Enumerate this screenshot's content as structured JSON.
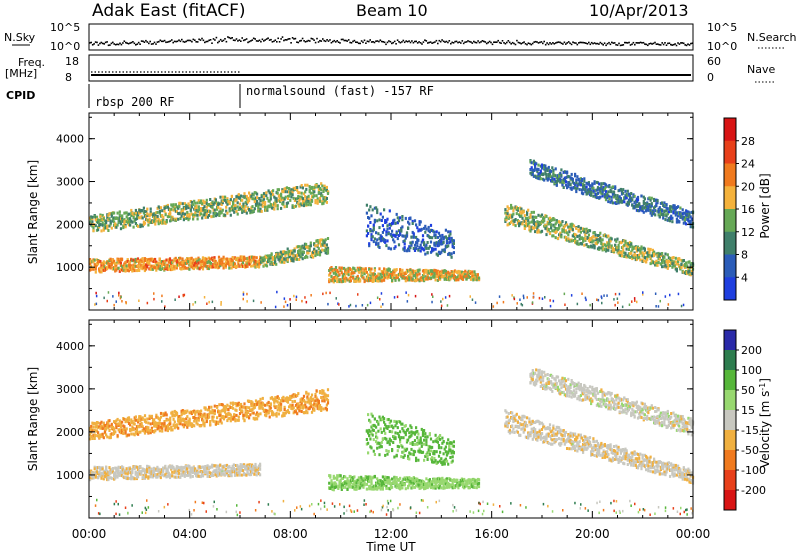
{
  "header": {
    "station": "Adak East (fitACF)",
    "beam": "Beam 10",
    "date": "10/Apr/2013"
  },
  "top_panels": {
    "nsky_label": "N.Sky",
    "nsky_ticks": [
      "10^5",
      "10^0"
    ],
    "nsearch_label": "N.Search",
    "nsearch_ticks": [
      "10^5",
      "10^0"
    ],
    "freq_label_1": "Freq.",
    "freq_label_2": "[MHz]",
    "freq_ticks": [
      "18",
      "8"
    ],
    "nave_label": "Nave",
    "nave_ticks": [
      "60",
      "0"
    ],
    "cpid_label": "CPID",
    "cpid_segments": [
      {
        "label": "rbsp 200 RF",
        "start_hour": 0
      },
      {
        "label": "normalsound (fast) -157 RF",
        "start_hour": 6
      }
    ]
  },
  "time_axis": {
    "label": "Time UT",
    "ticks": [
      "00:00",
      "04:00",
      "08:00",
      "12:00",
      "16:00",
      "20:00",
      "00:00"
    ]
  },
  "chart_data": [
    {
      "type": "heatmap",
      "name": "power",
      "ylabel": "Slant Range [km]",
      "yticks": [
        "1000",
        "2000",
        "3000",
        "4000"
      ],
      "ylim": [
        0,
        4600
      ],
      "xlim_hours": [
        0,
        24
      ],
      "colorbar_label": "Power [dB]",
      "colorbar_ticks": [
        "4",
        "8",
        "12",
        "16",
        "20",
        "24",
        "28"
      ],
      "colorbar_range": [
        0,
        32
      ],
      "colors": [
        "#1f3fdf",
        "#2b5cb8",
        "#3f7f6a",
        "#66a856",
        "#f4b23c",
        "#f07a1e",
        "#e8401a",
        "#d81414"
      ],
      "bands": [
        {
          "t0": 0.0,
          "t1": 6.8,
          "r0": 880,
          "r1": 1180,
          "r1_end": 1250,
          "r0_end": 1000,
          "level": 20
        },
        {
          "t0": 6.8,
          "t1": 9.5,
          "r0": 1000,
          "r1": 1250,
          "r1_end": 1700,
          "r0_end": 1300,
          "level": 14
        },
        {
          "t0": 0.0,
          "t1": 9.5,
          "r0": 1800,
          "r1": 2200,
          "r1_end": 3000,
          "r0_end": 2500,
          "level": 14
        },
        {
          "t0": 9.5,
          "t1": 15.5,
          "r0": 650,
          "r1": 1000,
          "r1_end": 900,
          "r0_end": 700,
          "level": 18
        },
        {
          "t0": 11.0,
          "t1": 14.5,
          "r0": 1500,
          "r1": 2500,
          "r1_end": 1800,
          "r0_end": 1200,
          "level": 6
        },
        {
          "t0": 16.5,
          "t1": 24.0,
          "r0": 2000,
          "r1": 2500,
          "r1_end": 1100,
          "r0_end": 800,
          "level": 14
        },
        {
          "t0": 17.5,
          "t1": 24.0,
          "r0": 3100,
          "r1": 3500,
          "r1_end": 2300,
          "r0_end": 1900,
          "level": 8
        }
      ]
    },
    {
      "type": "heatmap",
      "name": "velocity",
      "ylabel": "Slant Range [km]",
      "yticks": [
        "1000",
        "2000",
        "3000",
        "4000"
      ],
      "ylim": [
        0,
        4600
      ],
      "xlim_hours": [
        0,
        24
      ],
      "colorbar_label": "Velocity [m s^-1]",
      "colorbar_ticks": [
        "200",
        "100",
        "50",
        "15",
        "-15",
        "-50",
        "-100",
        "-200"
      ],
      "colors": [
        "#2a2aa8",
        "#2e7d4f",
        "#56b63a",
        "#98d870",
        "#c8c8c0",
        "#f0b040",
        "#f07a1e",
        "#e8401a",
        "#d81414"
      ],
      "bands": [
        {
          "t0": 0.0,
          "t1": 6.8,
          "r0": 880,
          "r1": 1180,
          "r1_end": 1250,
          "r0_end": 1000,
          "level": -5
        },
        {
          "t0": 0.0,
          "t1": 9.5,
          "r0": 1800,
          "r1": 2200,
          "r1_end": 3000,
          "r0_end": 2500,
          "level": -40
        },
        {
          "t0": 9.5,
          "t1": 15.5,
          "r0": 650,
          "r1": 1000,
          "r1_end": 900,
          "r0_end": 700,
          "level": 40
        },
        {
          "t0": 11.0,
          "t1": 14.5,
          "r0": 1500,
          "r1": 2500,
          "r1_end": 1800,
          "r0_end": 1200,
          "level": 60
        },
        {
          "t0": 16.5,
          "t1": 24.0,
          "r0": 2000,
          "r1": 2500,
          "r1_end": 1100,
          "r0_end": 800,
          "level": -5
        },
        {
          "t0": 17.5,
          "t1": 24.0,
          "r0": 3100,
          "r1": 3500,
          "r1_end": 2300,
          "r0_end": 1900,
          "level": 0
        }
      ]
    }
  ]
}
